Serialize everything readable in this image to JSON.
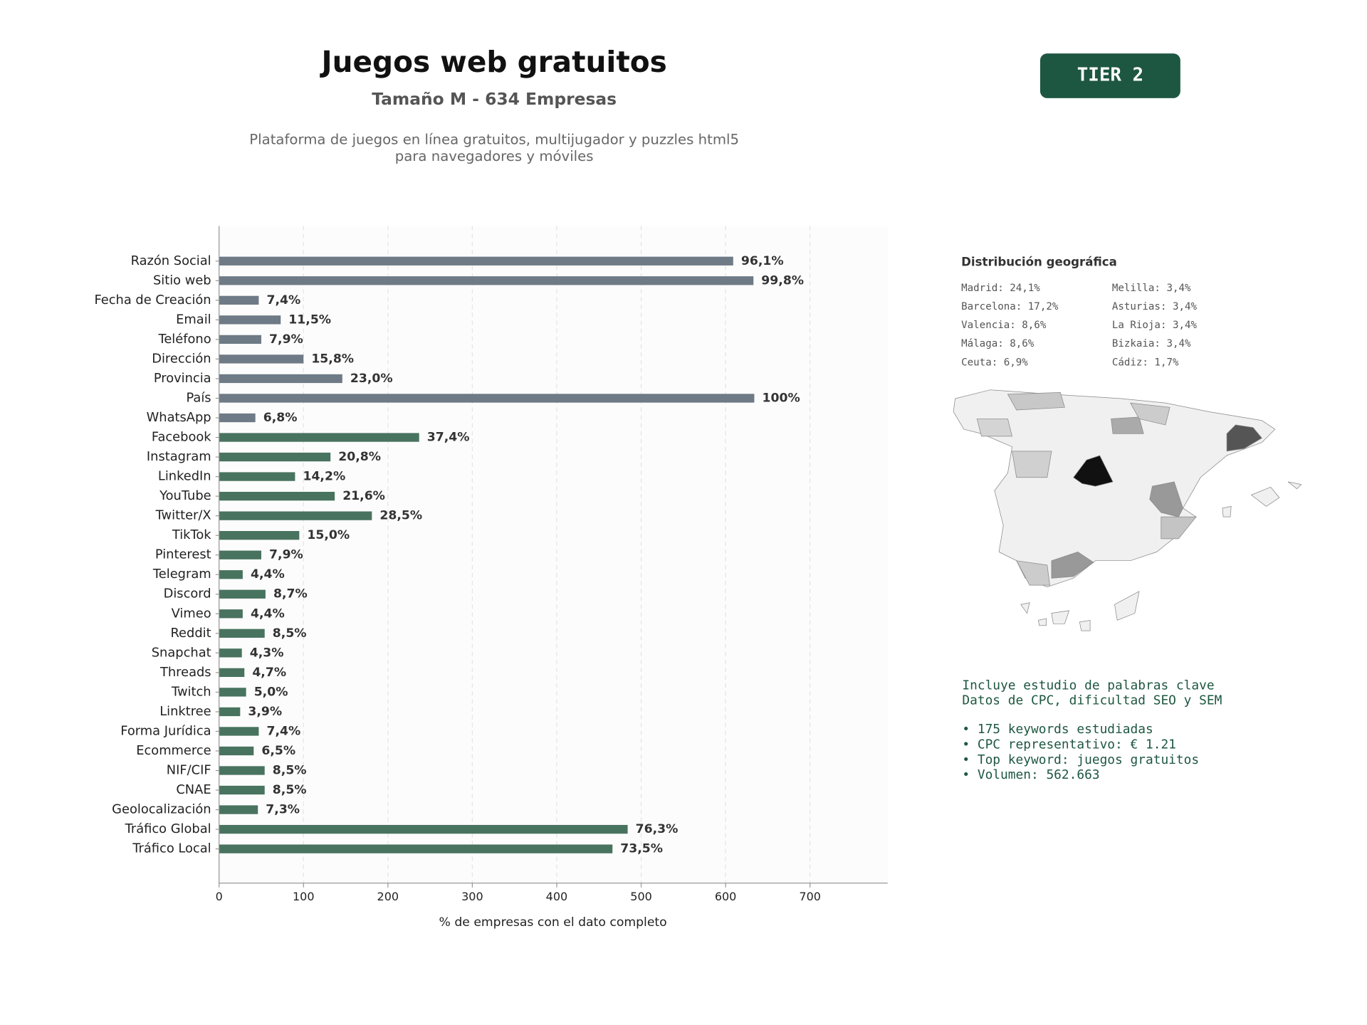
{
  "header": {
    "title": "Juegos web gratuitos",
    "subtitle": "Tamaño M - 634 Empresas",
    "description": [
      "Plataforma de juegos en línea gratuitos, multijugador y puzzles html5",
      "para navegadores y móviles"
    ],
    "badge": "TIER 2"
  },
  "chart_data": {
    "type": "barh",
    "categories": [
      "Razón Social",
      "Sitio web",
      "Fecha de Creación",
      "Email",
      "Teléfono",
      "Dirección",
      "Provincia",
      "País",
      "WhatsApp",
      "Facebook",
      "Instagram",
      "LinkedIn",
      "YouTube",
      "Twitter/X",
      "TikTok",
      "Pinterest",
      "Telegram",
      "Discord",
      "Vimeo",
      "Reddit",
      "Snapchat",
      "Threads",
      "Twitch",
      "Linktree",
      "Forma Jurídica",
      "Ecommerce",
      "NIF/CIF",
      "CNAE",
      "Geolocalización",
      "Tráfico Global",
      "Tráfico Local"
    ],
    "values": [
      609,
      633,
      47,
      73,
      50,
      100,
      146,
      634,
      43,
      237,
      132,
      90,
      137,
      181,
      95,
      50,
      28,
      55,
      28,
      54,
      27,
      30,
      32,
      25,
      47,
      41,
      54,
      54,
      46,
      484,
      466
    ],
    "value_labels": [
      "96,1%",
      "99,8%",
      "7,4%",
      "11,5%",
      "7,9%",
      "15,8%",
      "23,0%",
      "100%",
      "6,8%",
      "37,4%",
      "20,8%",
      "14,2%",
      "21,6%",
      "28,5%",
      "15,0%",
      "7,9%",
      "4,4%",
      "8,7%",
      "4,4%",
      "8,5%",
      "4,3%",
      "4,7%",
      "5,0%",
      "3,9%",
      "7,4%",
      "6,5%",
      "8,5%",
      "8,5%",
      "7,3%",
      "76,3%",
      "73,5%"
    ],
    "colors": [
      "#6e7a85",
      "#6e7a85",
      "#6e7a85",
      "#6e7a85",
      "#6e7a85",
      "#6e7a85",
      "#6e7a85",
      "#6e7a85",
      "#6e7a85",
      "#48735f",
      "#48735f",
      "#48735f",
      "#48735f",
      "#48735f",
      "#48735f",
      "#48735f",
      "#48735f",
      "#48735f",
      "#48735f",
      "#48735f",
      "#48735f",
      "#48735f",
      "#48735f",
      "#48735f",
      "#48735f",
      "#48735f",
      "#48735f",
      "#48735f",
      "#48735f",
      "#48735f",
      "#48735f"
    ],
    "xlim": [
      0,
      792
    ],
    "xticks": [
      0,
      100,
      200,
      300,
      400,
      500,
      600,
      700
    ],
    "xlabel": "% de empresas con el dato completo",
    "grid": true
  },
  "geo": {
    "title": "Distribución geográfica",
    "items": [
      "Madrid: 24,1%",
      "Barcelona: 17,2%",
      "Valencia: 8,6%",
      "Málaga: 8,6%",
      "Ceuta: 6,9%",
      "Melilla: 3,4%",
      "Asturias: 3,4%",
      "La Rioja: 3,4%",
      "Bizkaia: 3,4%",
      "Cádiz: 1,7%"
    ]
  },
  "keywords": {
    "intro": [
      "Incluye estudio de palabras clave",
      "Datos de CPC, dificultad SEO y SEM"
    ],
    "bullets": [
      "• 175 keywords estudiadas",
      "• CPC representativo: € 1.21",
      "• Top keyword: juegos gratuitos",
      "• Volumen: 562.663"
    ]
  }
}
